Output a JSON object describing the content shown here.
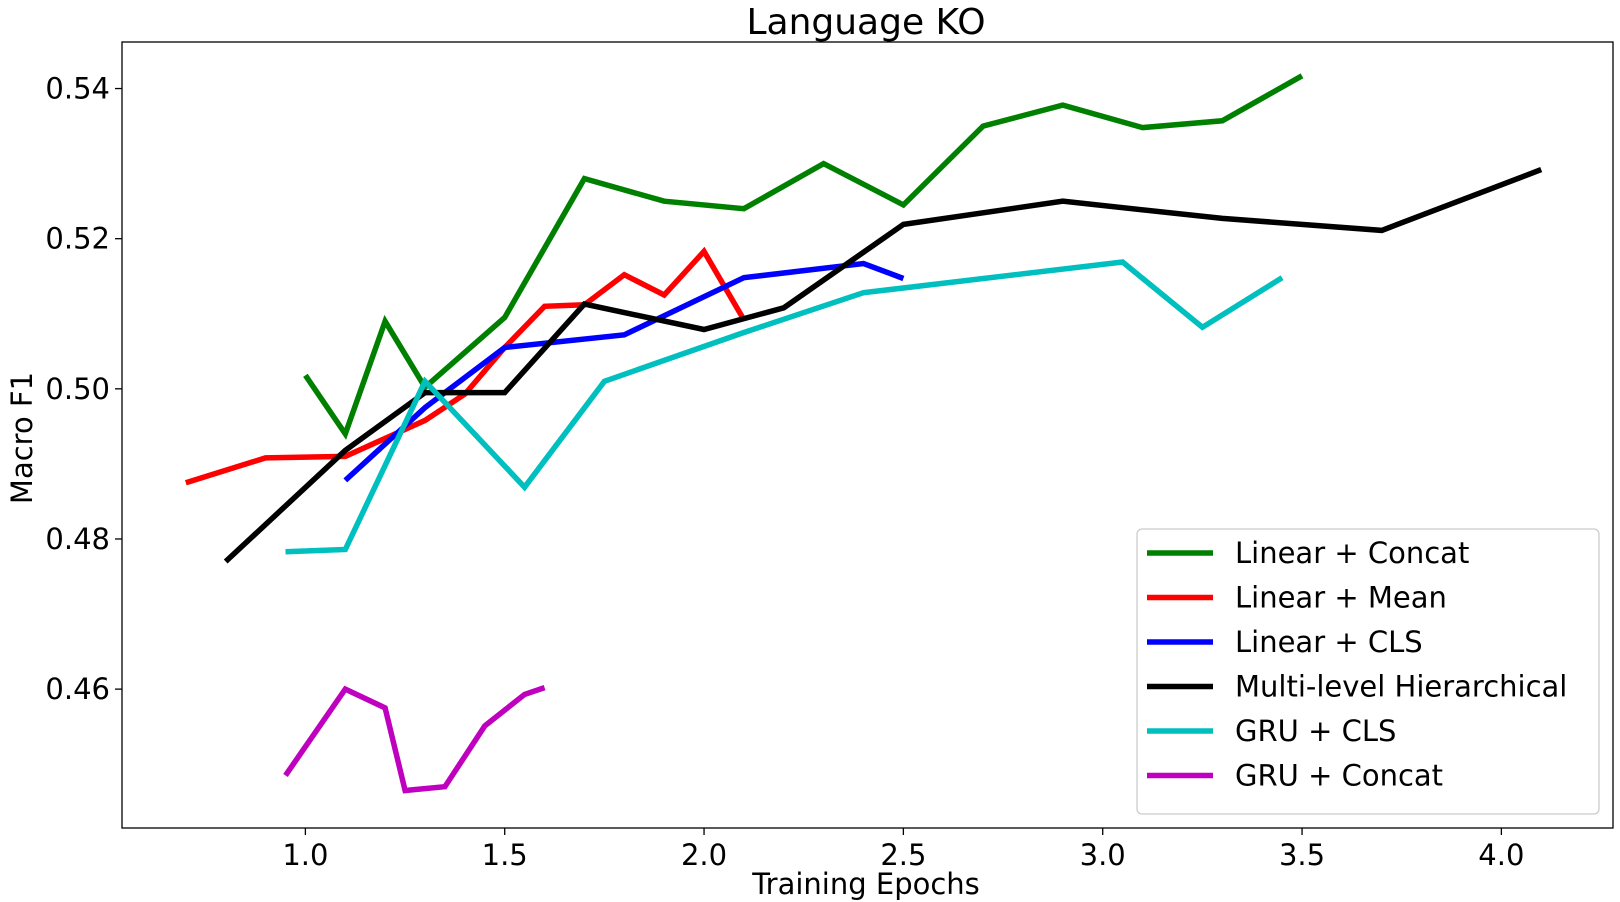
{
  "chart_data": {
    "type": "line",
    "title": "Language KO",
    "xlabel": "Training Epochs",
    "ylabel": "Macro F1",
    "xlim": [
      0.54,
      4.28
    ],
    "ylim": [
      0.4415,
      0.5462
    ],
    "xticks": [
      1.0,
      1.5,
      2.0,
      2.5,
      3.0,
      3.5,
      4.0
    ],
    "xtick_labels": [
      "1.0",
      "1.5",
      "2.0",
      "2.5",
      "3.0",
      "3.5",
      "4.0"
    ],
    "yticks": [
      0.46,
      0.48,
      0.5,
      0.52,
      0.54
    ],
    "ytick_labels": [
      "0.46",
      "0.48",
      "0.50",
      "0.52",
      "0.54"
    ],
    "grid": false,
    "legend_position": "lower-right",
    "series": [
      {
        "name": "Linear + Concat",
        "color": "#008000",
        "x": [
          1.0,
          1.1,
          1.2,
          1.3,
          1.5,
          1.7,
          1.9,
          2.1,
          2.3,
          2.5,
          2.7,
          2.9,
          3.1,
          3.3,
          3.5
        ],
        "y": [
          0.5018,
          0.494,
          0.509,
          0.5002,
          0.5095,
          0.528,
          0.525,
          0.524,
          0.53,
          0.5245,
          0.535,
          0.5378,
          0.5348,
          0.5357,
          0.5417
        ]
      },
      {
        "name": "Linear + Mean",
        "color": "#ff0000",
        "x": [
          0.7,
          0.9,
          1.1,
          1.3,
          1.4,
          1.5,
          1.6,
          1.7,
          1.8,
          1.9,
          2.0,
          2.1
        ],
        "y": [
          0.4875,
          0.4908,
          0.491,
          0.4958,
          0.4993,
          0.5055,
          0.511,
          0.5112,
          0.5152,
          0.5125,
          0.5183,
          0.5092
        ]
      },
      {
        "name": "Linear + CLS",
        "color": "#0000ff",
        "x": [
          1.1,
          1.3,
          1.5,
          1.8,
          2.1,
          2.4,
          2.5
        ],
        "y": [
          0.4878,
          0.4975,
          0.5055,
          0.5072,
          0.5148,
          0.5167,
          0.5147
        ]
      },
      {
        "name": "Multi-level Hierarchical",
        "color": "#000000",
        "x": [
          0.8,
          1.1,
          1.3,
          1.5,
          1.7,
          2.0,
          2.2,
          2.5,
          2.9,
          3.3,
          3.7,
          4.1
        ],
        "y": [
          0.477,
          0.4918,
          0.4995,
          0.4995,
          0.5113,
          0.5079,
          0.5108,
          0.5219,
          0.525,
          0.5227,
          0.5211,
          0.5292
        ]
      },
      {
        "name": "GRU + CLS",
        "color": "#00bfbf",
        "x": [
          0.95,
          1.1,
          1.3,
          1.55,
          1.75,
          2.1,
          2.4,
          3.05,
          3.25,
          3.45
        ],
        "y": [
          0.4783,
          0.4786,
          0.501,
          0.4869,
          0.501,
          0.5075,
          0.5128,
          0.5169,
          0.5082,
          0.5148
        ]
      },
      {
        "name": "GRU + Concat",
        "color": "#bf00bf",
        "x": [
          0.95,
          1.1,
          1.2,
          1.25,
          1.35,
          1.45,
          1.55,
          1.6
        ],
        "y": [
          0.4485,
          0.46,
          0.4575,
          0.4465,
          0.447,
          0.4551,
          0.4593,
          0.4602
        ]
      }
    ]
  }
}
